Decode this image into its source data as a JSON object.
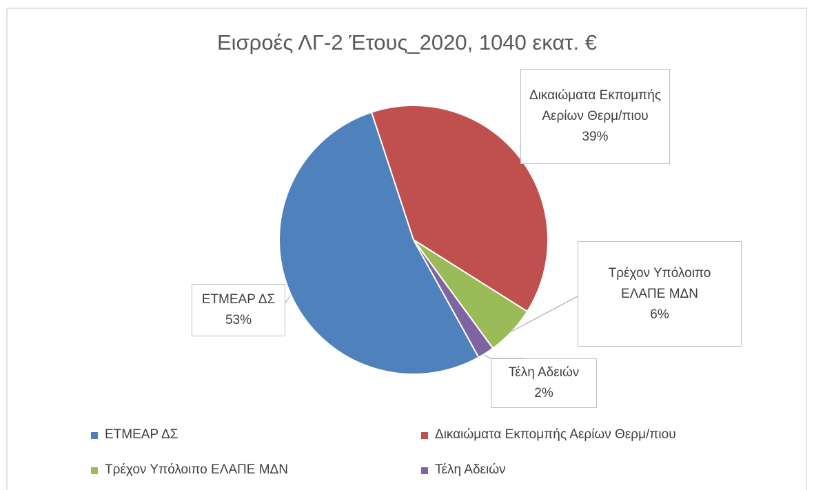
{
  "chart_data": {
    "type": "pie",
    "title": "Εισροές ΛΓ-2 Έτους_2020, 1040 εκατ. €",
    "categories": [
      "ΕΤΜΕΑΡ ΔΣ",
      "Δικαιώματα Εκπομπής Αερίων Θερμ/πιου",
      "Τρέχον Υπόλοιπο ΕΛΑΠΕ ΜΔΝ",
      "Τέλη Αδειών"
    ],
    "values": [
      53,
      39,
      6,
      2
    ],
    "value_labels": [
      "53%",
      "39%",
      "6%",
      "2%"
    ],
    "colors": [
      "#4f81bd",
      "#c0504d",
      "#9bbb59",
      "#8064a2"
    ],
    "legend": "bottom"
  }
}
